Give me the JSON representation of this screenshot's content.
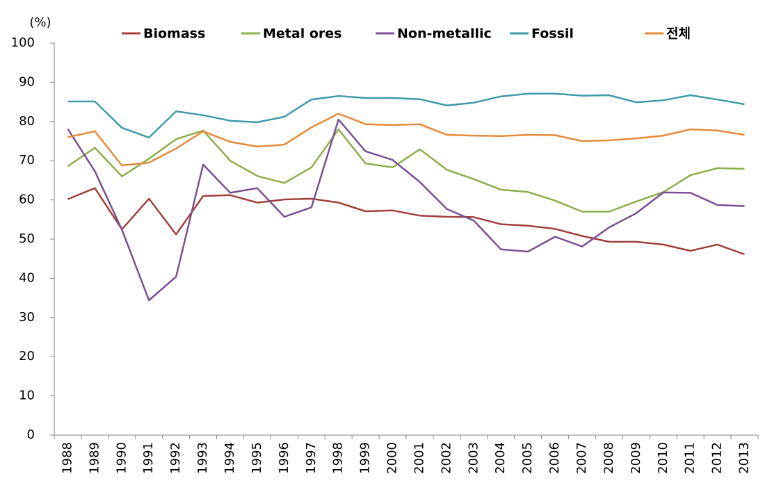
{
  "chart_data": {
    "type": "line",
    "y_label": "(%)",
    "legend": "top",
    "grid": false,
    "categories": [
      "1988",
      "1989",
      "1990",
      "1991",
      "1992",
      "1993",
      "1994",
      "1995",
      "1996",
      "1997",
      "1998",
      "1999",
      "2000",
      "2001",
      "2002",
      "2003",
      "2004",
      "2005",
      "2006",
      "2007",
      "2008",
      "2009",
      "2010",
      "2011",
      "2012",
      "2013"
    ],
    "ylim": [
      0,
      100
    ],
    "yticks": [
      0,
      10,
      20,
      30,
      40,
      50,
      60,
      70,
      80,
      90,
      100
    ],
    "series": [
      {
        "name": "Biomass",
        "color": "#a0403c",
        "values": [
          60.2,
          63,
          52.5,
          60.3,
          51.2,
          61,
          61.2,
          59.3,
          60.1,
          60.3,
          59.3,
          57.1,
          57.3,
          56,
          55.7,
          55.6,
          53.8,
          53.4,
          52.6,
          50.8,
          49.3,
          49.3,
          48.6,
          47,
          48.6,
          46.1
        ]
      },
      {
        "name": "Metal ores",
        "color": "#8cae4a",
        "values": [
          68.6,
          73.3,
          66,
          70.5,
          75.5,
          77.7,
          70,
          66.1,
          64.3,
          68.3,
          78,
          69.3,
          68.3,
          72.9,
          67.7,
          65.3,
          62.6,
          62,
          59.8,
          57,
          57,
          59.6,
          62,
          66.3,
          68.1,
          67.9
        ]
      },
      {
        "name": "Non-metallic",
        "color": "#7b4f93",
        "values": [
          78.1,
          67.3,
          52.4,
          34.4,
          40.4,
          69,
          61.8,
          63,
          55.7,
          58.1,
          80.5,
          72.4,
          70.2,
          64.6,
          57.7,
          54.7,
          47.4,
          46.8,
          50.6,
          48.1,
          53,
          56.6,
          61.9,
          61.8,
          58.7,
          58.4
        ]
      },
      {
        "name": "Fossil",
        "color": "#3e9aaa",
        "values": [
          85.1,
          85.1,
          78.4,
          75.9,
          82.6,
          81.6,
          80.2,
          79.8,
          81.2,
          85.6,
          86.5,
          86,
          86,
          85.7,
          84.1,
          84.8,
          86.4,
          87.1,
          87.1,
          86.6,
          86.7,
          84.9,
          85.4,
          86.7,
          85.6,
          84.4
        ]
      },
      {
        "name": "전체",
        "color": "#e68a3a",
        "values": [
          76,
          77.5,
          68.8,
          69.5,
          73.1,
          77.5,
          74.8,
          73.6,
          74.1,
          78.5,
          82,
          79.3,
          79.1,
          79.3,
          76.6,
          76.4,
          76.3,
          76.6,
          76.5,
          75,
          75.2,
          75.7,
          76.4,
          78,
          77.7,
          76.6
        ]
      }
    ]
  }
}
